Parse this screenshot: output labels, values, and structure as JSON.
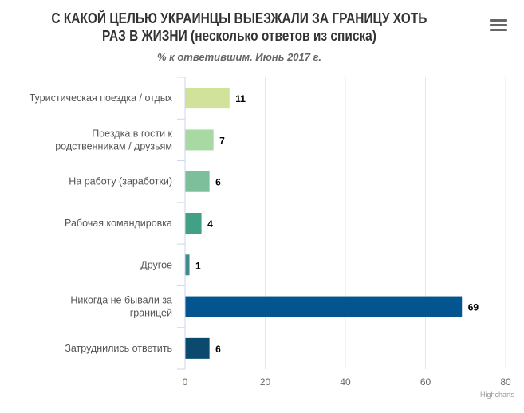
{
  "chart_data": {
    "type": "bar",
    "orientation": "horizontal",
    "title_lines": [
      "С КАКОЙ ЦЕЛЬЮ УКРАИНЦЫ ВЫЕЗЖАЛИ ЗА ГРАНИЦУ ХОТЬ",
      "РАЗ В ЖИЗНИ (несколько ответов из списка)"
    ],
    "subtitle": "% к ответившим. Июнь 2017 г.",
    "categories": [
      [
        "Туристическая поездка / отдых"
      ],
      [
        "Поездка в гости к",
        "родственникам / друзьям"
      ],
      [
        "На работу (заработки)"
      ],
      [
        "Рабочая командировка"
      ],
      [
        "Другое"
      ],
      [
        "Никогда не бывали за",
        "границей"
      ],
      [
        "Затруднились ответить"
      ]
    ],
    "values": [
      11,
      7,
      6,
      4,
      1,
      69,
      6
    ],
    "colors": [
      "#d1e39b",
      "#a9d9a3",
      "#7dbf9b",
      "#41a086",
      "#3f8a8c",
      "#02558f",
      "#0b4a6e"
    ],
    "xlim": [
      0,
      80
    ],
    "ticks": [
      0,
      20,
      40,
      60,
      80
    ],
    "grid": true,
    "legend": "none",
    "credit": "Highcharts"
  }
}
